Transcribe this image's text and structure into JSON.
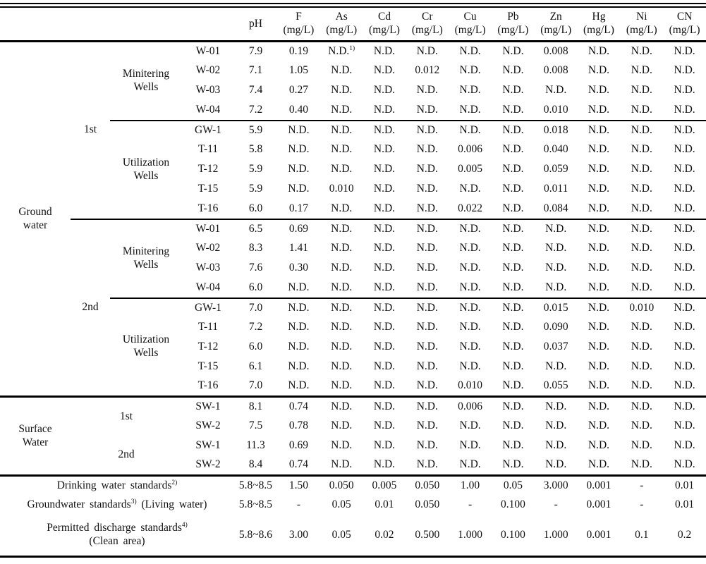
{
  "table": {
    "columns": [
      {
        "sym": "pH",
        "unit": ""
      },
      {
        "sym": "F",
        "unit": "(mg/L)"
      },
      {
        "sym": "As",
        "unit": "(mg/L)"
      },
      {
        "sym": "Cd",
        "unit": "(mg/L)"
      },
      {
        "sym": "Cr",
        "unit": "(mg/L)"
      },
      {
        "sym": "Cu",
        "unit": "(mg/L)"
      },
      {
        "sym": "Pb",
        "unit": "(mg/L)"
      },
      {
        "sym": "Zn",
        "unit": "(mg/L)"
      },
      {
        "sym": "Hg",
        "unit": "(mg/L)"
      },
      {
        "sym": "Ni",
        "unit": "(mg/L)"
      },
      {
        "sym": "CN",
        "unit": "(mg/L)"
      }
    ],
    "rows": [
      {
        "labels": [
          {
            "t": "Ground\nwater",
            "rs": 18,
            "n": "group-cell-ground-water",
            "bb": "thick"
          },
          {
            "t": "1st",
            "rs": 9,
            "n": "survey-round-cell",
            "bb": "thin"
          },
          {
            "t": "Minitering\nWells",
            "rs": 4,
            "n": "well-type-cell",
            "bb": "thin"
          },
          {
            "t": "W-01",
            "n": "well-id-cell"
          }
        ],
        "v": [
          "7.9",
          "0.19",
          "N.D.^{1)}",
          "N.D.",
          "N.D.",
          "N.D.",
          "N.D.",
          "0.008",
          "N.D.",
          "N.D.",
          "N.D."
        ]
      },
      {
        "labels": [
          {
            "t": "W-02",
            "n": "well-id-cell"
          }
        ],
        "v": [
          "7.1",
          "1.05",
          "N.D.",
          "N.D.",
          "0.012",
          "N.D.",
          "N.D.",
          "0.008",
          "N.D.",
          "N.D.",
          "N.D."
        ]
      },
      {
        "labels": [
          {
            "t": "W-03",
            "n": "well-id-cell"
          }
        ],
        "v": [
          "7.4",
          "0.27",
          "N.D.",
          "N.D.",
          "N.D.",
          "N.D.",
          "N.D.",
          "N.D.",
          "N.D.",
          "N.D.",
          "N.D."
        ]
      },
      {
        "labels": [
          {
            "t": "W-04",
            "n": "well-id-cell",
            "bb": "thin"
          }
        ],
        "bb": "thin",
        "v": [
          "7.2",
          "0.40",
          "N.D.",
          "N.D.",
          "N.D.",
          "N.D.",
          "N.D.",
          "0.010",
          "N.D.",
          "N.D.",
          "N.D."
        ]
      },
      {
        "labels": [
          {
            "t": "Utilization\nWells",
            "rs": 5,
            "n": "well-type-cell",
            "bb": "thin"
          },
          {
            "t": "GW-1",
            "n": "well-id-cell"
          }
        ],
        "v": [
          "5.9",
          "N.D.",
          "N.D.",
          "N.D.",
          "N.D.",
          "N.D.",
          "N.D.",
          "0.018",
          "N.D.",
          "N.D.",
          "N.D."
        ]
      },
      {
        "labels": [
          {
            "t": "T-11",
            "n": "well-id-cell"
          }
        ],
        "v": [
          "5.8",
          "N.D.",
          "N.D.",
          "N.D.",
          "N.D.",
          "0.006",
          "N.D.",
          "0.040",
          "N.D.",
          "N.D.",
          "N.D."
        ]
      },
      {
        "labels": [
          {
            "t": "T-12",
            "n": "well-id-cell"
          }
        ],
        "v": [
          "5.9",
          "N.D.",
          "N.D.",
          "N.D.",
          "N.D.",
          "0.005",
          "N.D.",
          "0.059",
          "N.D.",
          "N.D.",
          "N.D."
        ]
      },
      {
        "labels": [
          {
            "t": "T-15",
            "n": "well-id-cell"
          }
        ],
        "v": [
          "5.9",
          "N.D.",
          "0.010",
          "N.D.",
          "N.D.",
          "N.D.",
          "N.D.",
          "0.011",
          "N.D.",
          "N.D.",
          "N.D."
        ]
      },
      {
        "labels": [
          {
            "t": "T-16",
            "n": "well-id-cell",
            "bb": "thin"
          }
        ],
        "bb": "thin",
        "v": [
          "6.0",
          "0.17",
          "N.D.",
          "N.D.",
          "N.D.",
          "0.022",
          "N.D.",
          "0.084",
          "N.D.",
          "N.D.",
          "N.D."
        ]
      },
      {
        "labels": [
          {
            "t": "2nd",
            "rs": 9,
            "n": "survey-round-cell",
            "bb": "thick"
          },
          {
            "t": "Minitering\nWells",
            "rs": 4,
            "n": "well-type-cell",
            "bb": "thin"
          },
          {
            "t": "W-01",
            "n": "well-id-cell"
          }
        ],
        "v": [
          "6.5",
          "0.69",
          "N.D.",
          "N.D.",
          "N.D.",
          "N.D.",
          "N.D.",
          "N.D.",
          "N.D.",
          "N.D.",
          "N.D."
        ]
      },
      {
        "labels": [
          {
            "t": "W-02",
            "n": "well-id-cell"
          }
        ],
        "v": [
          "8.3",
          "1.41",
          "N.D.",
          "N.D.",
          "N.D.",
          "N.D.",
          "N.D.",
          "N.D.",
          "N.D.",
          "N.D.",
          "N.D."
        ]
      },
      {
        "labels": [
          {
            "t": "W-03",
            "n": "well-id-cell"
          }
        ],
        "v": [
          "7.6",
          "0.30",
          "N.D.",
          "N.D.",
          "N.D.",
          "N.D.",
          "N.D.",
          "N.D.",
          "N.D.",
          "N.D.",
          "N.D."
        ]
      },
      {
        "labels": [
          {
            "t": "W-04",
            "n": "well-id-cell",
            "bb": "thin"
          }
        ],
        "bb": "thin",
        "v": [
          "6.0",
          "N.D.",
          "N.D.",
          "N.D.",
          "N.D.",
          "N.D.",
          "N.D.",
          "N.D.",
          "N.D.",
          "N.D.",
          "N.D."
        ]
      },
      {
        "labels": [
          {
            "t": "Utilization\nWells",
            "rs": 5,
            "n": "well-type-cell",
            "bb": "thick"
          },
          {
            "t": "GW-1",
            "n": "well-id-cell"
          }
        ],
        "v": [
          "7.0",
          "N.D.",
          "N.D.",
          "N.D.",
          "N.D.",
          "N.D.",
          "N.D.",
          "0.015",
          "N.D.",
          "0.010",
          "N.D."
        ]
      },
      {
        "labels": [
          {
            "t": "T-11",
            "n": "well-id-cell"
          }
        ],
        "v": [
          "7.2",
          "N.D.",
          "N.D.",
          "N.D.",
          "N.D.",
          "N.D.",
          "N.D.",
          "0.090",
          "N.D.",
          "N.D.",
          "N.D."
        ]
      },
      {
        "labels": [
          {
            "t": "T-12",
            "n": "well-id-cell"
          }
        ],
        "v": [
          "6.0",
          "N.D.",
          "N.D.",
          "N.D.",
          "N.D.",
          "N.D.",
          "N.D.",
          "0.037",
          "N.D.",
          "N.D.",
          "N.D."
        ]
      },
      {
        "labels": [
          {
            "t": "T-15",
            "n": "well-id-cell"
          }
        ],
        "v": [
          "6.1",
          "N.D.",
          "N.D.",
          "N.D.",
          "N.D.",
          "N.D.",
          "N.D.",
          "N.D.",
          "N.D.",
          "N.D.",
          "N.D."
        ]
      },
      {
        "labels": [
          {
            "t": "T-16",
            "n": "well-id-cell",
            "bb": "thick"
          }
        ],
        "bb": "thick",
        "v": [
          "7.0",
          "N.D.",
          "N.D.",
          "N.D.",
          "N.D.",
          "0.010",
          "N.D.",
          "0.055",
          "N.D.",
          "N.D.",
          "N.D."
        ]
      },
      {
        "labels": [
          {
            "t": "Surface\nWater",
            "rs": 4,
            "n": "group-cell-surface-water",
            "bb": "thick"
          },
          {
            "t": "1st",
            "rs": 2,
            "cs": 2,
            "n": "survey-round-cell"
          },
          {
            "t": "SW-1",
            "n": "well-id-cell"
          }
        ],
        "v": [
          "8.1",
          "0.74",
          "N.D.",
          "N.D.",
          "N.D.",
          "0.006",
          "N.D.",
          "N.D.",
          "N.D.",
          "N.D.",
          "N.D."
        ]
      },
      {
        "labels": [
          {
            "t": "SW-2",
            "n": "well-id-cell"
          }
        ],
        "v": [
          "7.5",
          "0.78",
          "N.D.",
          "N.D.",
          "N.D.",
          "N.D.",
          "N.D.",
          "N.D.",
          "N.D.",
          "N.D.",
          "N.D."
        ]
      },
      {
        "labels": [
          {
            "t": "2nd",
            "rs": 2,
            "cs": 2,
            "n": "survey-round-cell",
            "bb": "thick"
          },
          {
            "t": "SW-1",
            "n": "well-id-cell"
          }
        ],
        "v": [
          "11.3",
          "0.69",
          "N.D.",
          "N.D.",
          "N.D.",
          "N.D.",
          "N.D.",
          "N.D.",
          "N.D.",
          "N.D.",
          "N.D."
        ]
      },
      {
        "labels": [
          {
            "t": "SW-2",
            "n": "well-id-cell",
            "bb": "thick"
          }
        ],
        "bb": "thick",
        "v": [
          "8.4",
          "0.74",
          "N.D.",
          "N.D.",
          "N.D.",
          "N.D.",
          "N.D.",
          "N.D.",
          "N.D.",
          "N.D.",
          "N.D."
        ]
      },
      {
        "labels": [
          {
            "t": "Drinking water standards^{2)}",
            "cs": 4,
            "n": "standard-label-cell",
            "cls": "std-label"
          }
        ],
        "v": [
          "5.8~8.5",
          "1.50",
          "0.050",
          "0.005",
          "0.050",
          "1.00",
          "0.05",
          "3.000",
          "0.001",
          "-",
          "0.01"
        ]
      },
      {
        "labels": [
          {
            "t": "Groundwater standards^{3)} (Living water)",
            "cs": 4,
            "n": "standard-label-cell",
            "cls": "std-label"
          }
        ],
        "v": [
          "5.8~8.5",
          "-",
          "0.05",
          "0.01",
          "0.050",
          "-",
          "0.100",
          "-",
          "0.001",
          "-",
          "0.01"
        ]
      },
      {
        "labels": [
          {
            "t": "Permitted discharge standards^{4)}\n(Clean area)",
            "cs": 4,
            "n": "standard-label-cell",
            "cls": "std-label"
          }
        ],
        "h": 59,
        "v": [
          "5.8~8.6",
          "3.00",
          "0.05",
          "0.02",
          "0.500",
          "1.000",
          "0.100",
          "1.000",
          "0.001",
          "0.1",
          "0.2"
        ]
      }
    ]
  }
}
